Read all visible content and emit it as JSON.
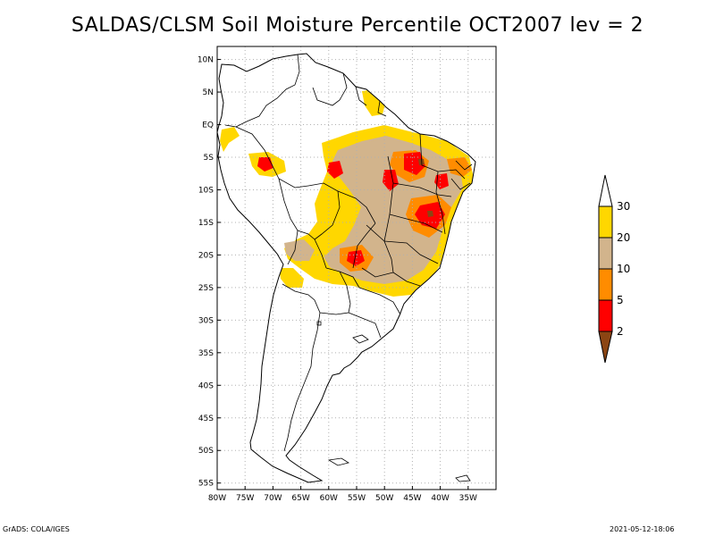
{
  "title": "SALDAS/CLSM Soil Moisture Percentile OCT2007 lev = 2",
  "footer": {
    "left": "GrADS: COLA/IGES",
    "right": "2021-05-12-18:06"
  },
  "map": {
    "region": "South America",
    "lon_range": [
      -80,
      -30
    ],
    "lat_range": [
      -56,
      12
    ],
    "lat_ticks": [
      {
        "value": 10,
        "label": "10N"
      },
      {
        "value": 5,
        "label": "5N"
      },
      {
        "value": 0,
        "label": "EQ"
      },
      {
        "value": -5,
        "label": "5S"
      },
      {
        "value": -10,
        "label": "10S"
      },
      {
        "value": -15,
        "label": "15S"
      },
      {
        "value": -20,
        "label": "20S"
      },
      {
        "value": -25,
        "label": "25S"
      },
      {
        "value": -30,
        "label": "30S"
      },
      {
        "value": -35,
        "label": "35S"
      },
      {
        "value": -40,
        "label": "40S"
      },
      {
        "value": -45,
        "label": "45S"
      },
      {
        "value": -50,
        "label": "50S"
      },
      {
        "value": -55,
        "label": "55S"
      }
    ],
    "lon_ticks": [
      {
        "value": -80,
        "label": "80W"
      },
      {
        "value": -75,
        "label": "75W"
      },
      {
        "value": -70,
        "label": "70W"
      },
      {
        "value": -65,
        "label": "65W"
      },
      {
        "value": -60,
        "label": "60W"
      },
      {
        "value": -55,
        "label": "55W"
      },
      {
        "value": -50,
        "label": "50W"
      },
      {
        "value": -45,
        "label": "45W"
      },
      {
        "value": -40,
        "label": "40W"
      },
      {
        "value": -35,
        "label": "35W"
      }
    ]
  },
  "legend": {
    "breaks": [
      "2",
      "5",
      "10",
      "20",
      "30"
    ],
    "colors": {
      "below_2": "#8b4513",
      "2_5": "#ff0000",
      "5_10": "#ff8c00",
      "10_20": "#d2b48c",
      "20_30": "#ffd700",
      "above_30": "#ffffff"
    }
  },
  "colors": {
    "yellow": "#ffd700",
    "tan": "#d2b48c",
    "orange": "#ff8c00",
    "red": "#ff0000",
    "brown": "#8b4513",
    "grid": "#b0b0b0"
  }
}
